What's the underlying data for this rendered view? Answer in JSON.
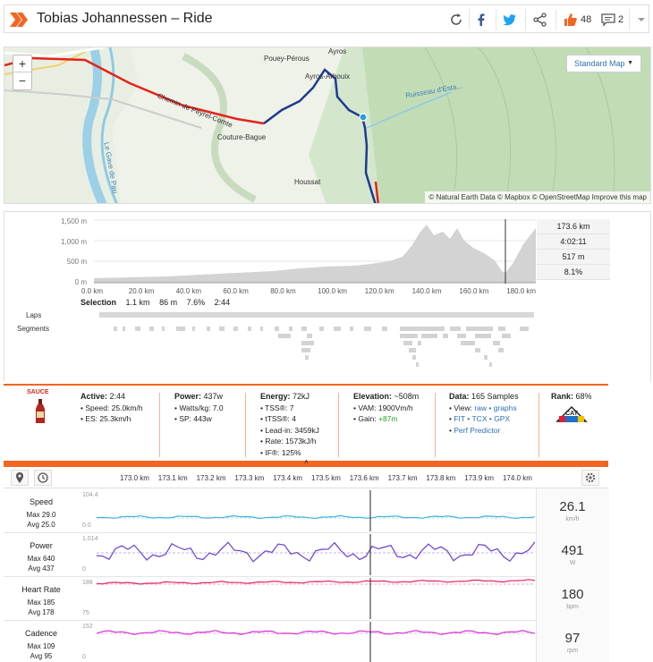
{
  "header": {
    "title": "Tobias Johannessen – Ride",
    "kudos": "48",
    "comments": "2"
  },
  "map": {
    "zoom_in": "+",
    "zoom_out": "−",
    "map_type": "Standard Map",
    "attribution": "© Natural Earth Data © Mapbox © OpenStreetMap Improve this map",
    "places": [
      "Ayros",
      "Pouey-Pérous",
      "Ayros-Arbouix",
      "Couture-Bague",
      "Houssat",
      "Ruisseau d'Esta...",
      "Chemin de Peyrel-Comte",
      "Le Gave de Pau"
    ]
  },
  "elevation": {
    "y_labels": [
      "1,500 m",
      "1,000 m",
      "500 m",
      "0 m"
    ],
    "x_labels": [
      "0.0 km",
      "20.0 km",
      "40.0 km",
      "60.0 km",
      "80.0 km",
      "100.0 km",
      "120.0 km",
      "140.0 km",
      "160.0 km",
      "180.0 km"
    ],
    "stats": [
      "173.6 km",
      "4:02:11",
      "517 m",
      "8.1%"
    ],
    "selection_label": "Selection",
    "selection": [
      "1.1 km",
      "86 m",
      "7.6%",
      "2:44"
    ],
    "laps_label": "Laps",
    "segments_label": "Segments"
  },
  "info": {
    "sauce": "SAUCE",
    "active_label": "Active:",
    "active_value": "2:44",
    "speed_line": "• Speed: 25.0km/h",
    "es_line": "• ES: 25.3km/h",
    "power_label": "Power:",
    "power_value": "437w",
    "wkg_line": "• Watts/kg: 7.0",
    "sp_line": "• SP: 443w",
    "energy_label": "Energy:",
    "energy_value": "72kJ",
    "tss_line": "• TSS®: 7",
    "ttss_line": "• tTSS®: 4",
    "leadin_line": "• Lead-in: 3459kJ",
    "rate_line": "• Rate: 1573kJ/h",
    "if_line": "• IF®: 125%",
    "elev_label": "Elevation:",
    "elev_value": "~508m",
    "vam_line": "• VAM: 1900Vm/h",
    "gain_prefix": "• Gain: ",
    "gain_value": "+87m",
    "data_label": "Data:",
    "data_value": "165 Samples",
    "view_prefix": "• View: ",
    "view_raw": "raw",
    "view_graphs": "graphs",
    "fit": "FIT",
    "tcx": "TCX",
    "gpx": "GPX",
    "perf": "Perf Predictor",
    "rank_label": "Rank:",
    "rank_value": "68%",
    "cat": "CAT",
    "collapse": "˄"
  },
  "time_axis": [
    "173.0 km",
    "173.1 km",
    "173.2 km",
    "173.3 km",
    "173.4 km",
    "173.5 km",
    "173.6 km",
    "173.7 km",
    "173.8 km",
    "173.9 km",
    "174.0 km"
  ],
  "streams": [
    {
      "name": "Speed",
      "max": "Max 29.0",
      "avg": "Avg 25.0",
      "ytop": "104.4",
      "ybot": "0.0",
      "value": "26.1",
      "unit": "km/h",
      "color": "#3fb3e0"
    },
    {
      "name": "Power",
      "max": "Max 640",
      "avg": "Avg 437",
      "ytop": "1,014",
      "ybot": "0",
      "value": "491",
      "unit": "W",
      "color": "#6a3fd0"
    },
    {
      "name": "Heart Rate",
      "max": "Max 185",
      "avg": "Avg 178",
      "ytop": "188",
      "ybot": "75",
      "value": "180",
      "unit": "bpm",
      "color": "#e0245e"
    },
    {
      "name": "Cadence",
      "max": "Max 109",
      "avg": "Avg 95",
      "ytop": "152",
      "ybot": "0",
      "value": "97",
      "unit": "rpm",
      "color": "#d42fd4"
    }
  ]
}
